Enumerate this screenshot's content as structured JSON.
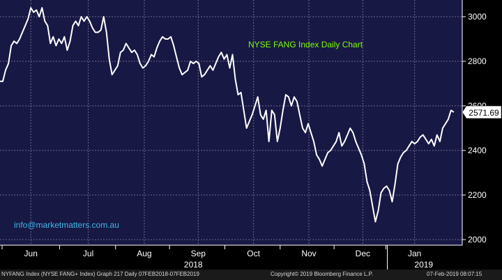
{
  "chart_data": {
    "type": "line",
    "title": "NYSE FANG Index Daily Chart",
    "series": [
      {
        "values": [
          [
            0,
            2710
          ],
          [
            4,
            2710
          ],
          [
            8,
            2760
          ],
          [
            12,
            2790
          ],
          [
            16,
            2870
          ],
          [
            20,
            2890
          ],
          [
            24,
            2880
          ],
          [
            28,
            2900
          ],
          [
            32,
            2930
          ],
          [
            36,
            2960
          ],
          [
            40,
            2990
          ],
          [
            44,
            3040
          ],
          [
            48,
            3020
          ],
          [
            52,
            3030
          ],
          [
            56,
            3000
          ],
          [
            60,
            3040
          ],
          [
            64,
            2980
          ],
          [
            68,
            2960
          ],
          [
            72,
            2880
          ],
          [
            76,
            2910
          ],
          [
            80,
            2870
          ],
          [
            84,
            2900
          ],
          [
            88,
            2880
          ],
          [
            92,
            2910
          ],
          [
            96,
            2850
          ],
          [
            100,
            2890
          ],
          [
            104,
            2960
          ],
          [
            108,
            2980
          ],
          [
            112,
            2960
          ],
          [
            116,
            3000
          ],
          [
            120,
            2980
          ],
          [
            124,
            3000
          ],
          [
            128,
            2980
          ],
          [
            132,
            2950
          ],
          [
            136,
            2930
          ],
          [
            140,
            2930
          ],
          [
            144,
            2940
          ],
          [
            148,
            3000
          ],
          [
            152,
            2930
          ],
          [
            156,
            2810
          ],
          [
            160,
            2740
          ],
          [
            164,
            2760
          ],
          [
            168,
            2780
          ],
          [
            172,
            2840
          ],
          [
            176,
            2850
          ],
          [
            180,
            2880
          ],
          [
            184,
            2860
          ],
          [
            188,
            2840
          ],
          [
            192,
            2850
          ],
          [
            196,
            2830
          ],
          [
            200,
            2790
          ],
          [
            204,
            2770
          ],
          [
            208,
            2780
          ],
          [
            212,
            2800
          ],
          [
            216,
            2830
          ],
          [
            220,
            2820
          ],
          [
            224,
            2860
          ],
          [
            228,
            2890
          ],
          [
            232,
            2910
          ],
          [
            236,
            2900
          ],
          [
            240,
            2900
          ],
          [
            244,
            2910
          ],
          [
            248,
            2870
          ],
          [
            252,
            2820
          ],
          [
            256,
            2770
          ],
          [
            260,
            2740
          ],
          [
            264,
            2750
          ],
          [
            268,
            2760
          ],
          [
            272,
            2800
          ],
          [
            276,
            2790
          ],
          [
            280,
            2800
          ],
          [
            284,
            2790
          ],
          [
            288,
            2730
          ],
          [
            292,
            2740
          ],
          [
            296,
            2760
          ],
          [
            300,
            2780
          ],
          [
            304,
            2760
          ],
          [
            308,
            2790
          ],
          [
            312,
            2820
          ],
          [
            316,
            2840
          ],
          [
            320,
            2810
          ],
          [
            324,
            2830
          ],
          [
            328,
            2770
          ],
          [
            332,
            2830
          ],
          [
            336,
            2720
          ],
          [
            340,
            2650
          ],
          [
            344,
            2660
          ],
          [
            348,
            2580
          ],
          [
            352,
            2500
          ],
          [
            356,
            2530
          ],
          [
            360,
            2560
          ],
          [
            364,
            2600
          ],
          [
            368,
            2640
          ],
          [
            372,
            2560
          ],
          [
            376,
            2540
          ],
          [
            380,
            2580
          ],
          [
            384,
            2440
          ],
          [
            388,
            2580
          ],
          [
            392,
            2560
          ],
          [
            396,
            2440
          ],
          [
            400,
            2500
          ],
          [
            404,
            2580
          ],
          [
            408,
            2650
          ],
          [
            412,
            2640
          ],
          [
            416,
            2600
          ],
          [
            420,
            2640
          ],
          [
            424,
            2620
          ],
          [
            428,
            2560
          ],
          [
            432,
            2500
          ],
          [
            436,
            2480
          ],
          [
            440,
            2520
          ],
          [
            444,
            2480
          ],
          [
            448,
            2440
          ],
          [
            452,
            2380
          ],
          [
            456,
            2360
          ],
          [
            460,
            2330
          ],
          [
            464,
            2360
          ],
          [
            468,
            2390
          ],
          [
            472,
            2400
          ],
          [
            476,
            2420
          ],
          [
            480,
            2440
          ],
          [
            484,
            2480
          ],
          [
            488,
            2420
          ],
          [
            492,
            2440
          ],
          [
            496,
            2470
          ],
          [
            500,
            2500
          ],
          [
            504,
            2480
          ],
          [
            508,
            2440
          ],
          [
            512,
            2410
          ],
          [
            516,
            2380
          ],
          [
            520,
            2340
          ],
          [
            524,
            2260
          ],
          [
            528,
            2220
          ],
          [
            532,
            2150
          ],
          [
            536,
            2080
          ],
          [
            540,
            2130
          ],
          [
            544,
            2210
          ],
          [
            548,
            2230
          ],
          [
            552,
            2240
          ],
          [
            556,
            2220
          ],
          [
            560,
            2170
          ],
          [
            564,
            2250
          ],
          [
            568,
            2340
          ],
          [
            572,
            2370
          ],
          [
            576,
            2390
          ],
          [
            580,
            2400
          ],
          [
            584,
            2420
          ],
          [
            588,
            2440
          ],
          [
            592,
            2430
          ],
          [
            596,
            2440
          ],
          [
            600,
            2460
          ],
          [
            604,
            2470
          ],
          [
            608,
            2450
          ],
          [
            612,
            2430
          ],
          [
            616,
            2450
          ],
          [
            620,
            2420
          ],
          [
            624,
            2470
          ],
          [
            628,
            2440
          ],
          [
            632,
            2500
          ],
          [
            636,
            2520
          ],
          [
            640,
            2540
          ],
          [
            644,
            2580
          ],
          [
            648,
            2571.69
          ]
        ]
      }
    ],
    "x_axis": {
      "range": [
        0,
        660
      ],
      "months": [
        {
          "label": "Jun",
          "pos": 44
        },
        {
          "label": "Jul",
          "pos": 126
        },
        {
          "label": "Aug",
          "pos": 206
        },
        {
          "label": "Sep",
          "pos": 283
        },
        {
          "label": "Oct",
          "pos": 362
        },
        {
          "label": "Nov",
          "pos": 441
        },
        {
          "label": "Dec",
          "pos": 518
        },
        {
          "label": "Jan",
          "pos": 592
        }
      ],
      "year_labels": [
        {
          "label": "2018",
          "pos": 276
        },
        {
          "label": "2019",
          "pos": 605
        }
      ],
      "year_break": 553
    },
    "y_axis": {
      "range": [
        1975,
        3075
      ],
      "ticks": [
        2000,
        2200,
        2400,
        2600,
        2800,
        3000
      ]
    },
    "last_value": "2571.69",
    "grid": true,
    "annotation": "info@marketmatters.com.au"
  },
  "footer": {
    "left": "NYFANG Index (NYSE FANG+ Index) Graph 217  Daily 07FEB2018-07FEB2019",
    "middle": "Copyright© 2019 Bloomberg Finance L.P.",
    "right": "07-Feb-2019 08:07:15"
  },
  "colors": {
    "plot_bg": "#181845",
    "line": "#ffffff",
    "grid": "#6a6a8a",
    "title": "#7CFC00",
    "annotation": "#3fb7e6",
    "axis_text": "#ffffff"
  }
}
